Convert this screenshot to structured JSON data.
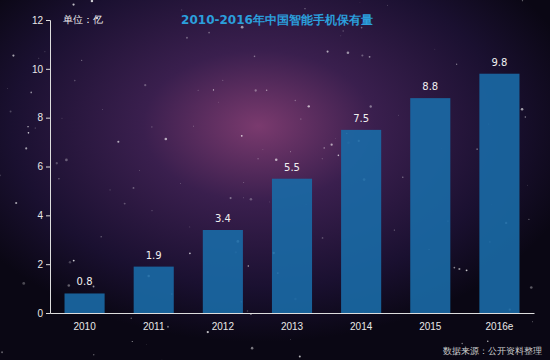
{
  "chart_data": {
    "type": "bar",
    "title": "2010-2016年中国智能手机保有量",
    "y_label": "单位：亿",
    "source": "数据来源：公开资料整理",
    "categories": [
      "2010",
      "2011",
      "2012",
      "2013",
      "2014",
      "2015",
      "2016e"
    ],
    "values": [
      0.8,
      1.9,
      3.4,
      5.5,
      7.5,
      8.8,
      9.8
    ],
    "color": "#1a6aa6",
    "ylim": [
      0,
      12
    ],
    "yticks": [
      0,
      2,
      4,
      6,
      8,
      10,
      12
    ],
    "grid": false,
    "data_labels": true
  }
}
